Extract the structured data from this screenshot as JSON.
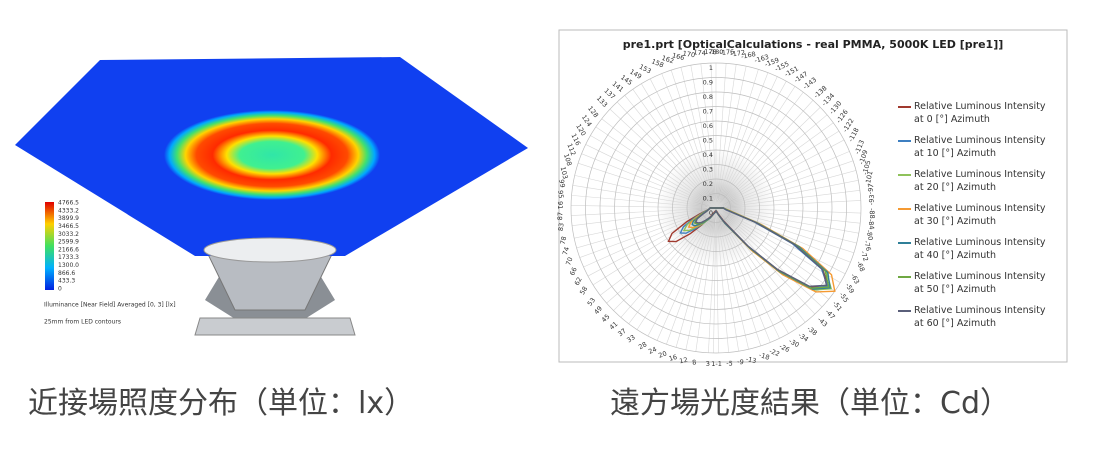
{
  "left_figure": {
    "colorbar_labels": [
      "4766.5",
      "4333.2",
      "3899.9",
      "3466.5",
      "3033.2",
      "2599.9",
      "2166.6",
      "1733.3",
      "1300.0",
      "866.6",
      "433.3",
      "0"
    ],
    "legend_title": "Illuminance [Near Field] Averaged [0, 3] [lx]",
    "note": "25mm from LED  contours"
  },
  "chart_data": {
    "type": "polar",
    "title": "pre1.prt [OpticalCalculations - real PMMA, 5000K LED [pre1]]",
    "rlim": [
      0,
      1
    ],
    "rticks": [
      0,
      0.1,
      0.2,
      0.3,
      0.4,
      0.5,
      0.6,
      0.7,
      0.8,
      0.9,
      1
    ],
    "angle_ticks": [
      1,
      3,
      8,
      12,
      16,
      20,
      24,
      28,
      33,
      37,
      41,
      45,
      49,
      53,
      58,
      62,
      66,
      70,
      74,
      78,
      83,
      87,
      91,
      95,
      99,
      103,
      108,
      112,
      116,
      120,
      124,
      128,
      133,
      137,
      141,
      145,
      149,
      153,
      158,
      162,
      166,
      170,
      174,
      178,
      -1,
      -5,
      -9,
      -13,
      -18,
      -22,
      -26,
      -30,
      -34,
      -38,
      -43,
      -47,
      -51,
      -55,
      -59,
      -63,
      -68,
      -72,
      -76,
      -80,
      -84,
      -88,
      -93,
      -97,
      -101,
      -105,
      -109,
      -113,
      -118,
      -122,
      -126,
      -130,
      -134,
      -138,
      -143,
      -147,
      -151,
      -155,
      -159,
      -163,
      -168,
      -172,
      -176,
      -180
    ],
    "grid": true,
    "legend": "right",
    "x": [
      -90,
      -80,
      -70,
      -65,
      -60,
      -55,
      -50,
      -45,
      -40,
      -30,
      -20,
      -10,
      0,
      10,
      20,
      30,
      40,
      45,
      50,
      55,
      60,
      65,
      70,
      80,
      90
    ],
    "series": [
      {
        "name": "Relative Luminous Intensity at 0 [°] Azimuth",
        "color": "#a0392e",
        "values": [
          0.05,
          0.08,
          0.3,
          0.6,
          0.85,
          0.95,
          0.85,
          0.6,
          0.35,
          0.1,
          0.04,
          0.02,
          0.02,
          0.02,
          0.03,
          0.06,
          0.15,
          0.25,
          0.36,
          0.4,
          0.35,
          0.22,
          0.12,
          0.05,
          0.04
        ]
      },
      {
        "name": "Relative Luminous Intensity at 10 [°] Azimuth",
        "color": "#3d7fc1",
        "values": [
          0.05,
          0.07,
          0.28,
          0.58,
          0.84,
          0.94,
          0.86,
          0.62,
          0.36,
          0.12,
          0.05,
          0.03,
          0.02,
          0.03,
          0.04,
          0.07,
          0.14,
          0.2,
          0.27,
          0.3,
          0.26,
          0.17,
          0.1,
          0.05,
          0.04
        ]
      },
      {
        "name": "Relative Luminous Intensity at 20 [°] Azimuth",
        "color": "#8fc25b",
        "values": [
          0.05,
          0.08,
          0.3,
          0.62,
          0.88,
          0.97,
          0.88,
          0.63,
          0.37,
          0.12,
          0.05,
          0.03,
          0.02,
          0.03,
          0.04,
          0.08,
          0.14,
          0.18,
          0.24,
          0.27,
          0.23,
          0.15,
          0.09,
          0.05,
          0.04
        ]
      },
      {
        "name": "Relative Luminous Intensity at 30 [°] Azimuth",
        "color": "#f59a32",
        "values": [
          0.05,
          0.09,
          0.33,
          0.66,
          0.92,
          1.0,
          0.9,
          0.65,
          0.38,
          0.12,
          0.05,
          0.03,
          0.02,
          0.03,
          0.04,
          0.08,
          0.13,
          0.17,
          0.21,
          0.23,
          0.2,
          0.14,
          0.08,
          0.05,
          0.04
        ]
      },
      {
        "name": "Relative Luminous Intensity at 40 [°] Azimuth",
        "color": "#2f7f98",
        "values": [
          0.05,
          0.08,
          0.31,
          0.63,
          0.89,
          0.96,
          0.87,
          0.62,
          0.36,
          0.12,
          0.05,
          0.03,
          0.02,
          0.03,
          0.04,
          0.08,
          0.13,
          0.16,
          0.19,
          0.2,
          0.18,
          0.12,
          0.08,
          0.05,
          0.04
        ]
      },
      {
        "name": "Relative Luminous Intensity at 50 [°] Azimuth",
        "color": "#6fa843",
        "values": [
          0.05,
          0.08,
          0.3,
          0.61,
          0.87,
          0.95,
          0.86,
          0.61,
          0.35,
          0.11,
          0.05,
          0.03,
          0.02,
          0.03,
          0.04,
          0.07,
          0.12,
          0.15,
          0.17,
          0.18,
          0.16,
          0.11,
          0.07,
          0.05,
          0.04
        ]
      },
      {
        "name": "Relative Luminous Intensity at 60 [°] Azimuth",
        "color": "#5a5f7a",
        "values": [
          0.05,
          0.07,
          0.29,
          0.6,
          0.85,
          0.93,
          0.84,
          0.6,
          0.34,
          0.11,
          0.05,
          0.03,
          0.02,
          0.03,
          0.04,
          0.07,
          0.11,
          0.14,
          0.16,
          0.17,
          0.15,
          0.1,
          0.07,
          0.05,
          0.04
        ]
      }
    ]
  },
  "captions": [
    "近接場照度分布（単位：lx）",
    "遠方場光度結果（単位：Cd）"
  ]
}
